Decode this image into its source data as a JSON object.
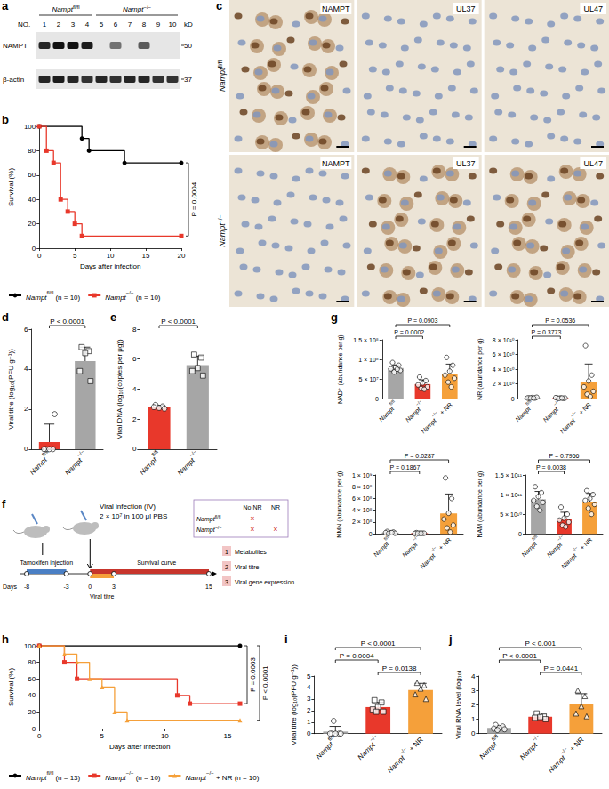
{
  "blot": {
    "panel": "a",
    "header": "NO.",
    "unit": "kD",
    "groups": [
      {
        "label": {
          "base": "Nampt",
          "sup": "fl/fl"
        },
        "lanes": [
          1,
          2,
          3,
          4
        ]
      },
      {
        "label": {
          "base": "Nampt",
          "sup": "−/−"
        },
        "lanes": [
          5,
          6,
          7,
          8,
          9,
          10
        ]
      }
    ],
    "rows": [
      {
        "name": "NAMPT",
        "marker": 50,
        "intensity": [
          0.9,
          1,
          1,
          0.95,
          0,
          0.55,
          0,
          0.65,
          0,
          0
        ]
      },
      {
        "name": "β-actin",
        "marker": 37,
        "intensity": [
          0.9,
          0.95,
          0.9,
          0.85,
          0.9,
          0.85,
          0.9,
          0.9,
          0.85,
          0.85
        ]
      }
    ]
  },
  "images": {
    "panel": "c",
    "rows": [
      {
        "label": {
          "base": "Nampt",
          "sup": "fl/fl"
        },
        "stains": [
          "NAMPT",
          "UL37",
          "UL47"
        ],
        "stained": [
          true,
          false,
          false
        ]
      },
      {
        "label": {
          "base": "Nampt",
          "sup": "−/−"
        },
        "stains": [
          "NAMPT",
          "UL37",
          "UL47"
        ],
        "stained": [
          false,
          true,
          true
        ]
      }
    ]
  },
  "schematic": {
    "panel": "f",
    "infection_label": "Viral infection (IV)",
    "infection_dose": "2 × 10⁷ in 100 μl PBS",
    "tamoxifen_label": "Tamoxifen injection",
    "survival_label": "Survival curve",
    "titre_label": "Viral titre",
    "days_label": "Days",
    "day_ticks": [
      -8,
      -3,
      0,
      3,
      15
    ],
    "tamoxifen_days": [
      -8,
      -3
    ],
    "survival_days": [
      0,
      15
    ],
    "titre_days": [
      0,
      3
    ],
    "design_table": {
      "columns": [
        "No NR",
        "NR"
      ],
      "mark": "×",
      "rows": [
        {
          "label": {
            "base": "Nampt",
            "sup": "fl/fl"
          },
          "marks": [
            true,
            false
          ]
        },
        {
          "label": {
            "base": "Nampt",
            "sup": "−/−"
          },
          "marks": [
            true,
            true
          ]
        }
      ]
    },
    "readouts": [
      {
        "number": 1,
        "text": "Metabolites"
      },
      {
        "number": 2,
        "text": "Viral titre"
      },
      {
        "number": 3,
        "text": "Viral gene expression"
      }
    ]
  },
  "chart_data": [
    {
      "panel": "b",
      "type": "survival",
      "xlabel": "Days after infection",
      "ylabel": "Survival (%)",
      "xlim": [
        0,
        20
      ],
      "xticks": [
        0,
        5,
        10,
        15,
        20
      ],
      "ylim": [
        0,
        100
      ],
      "yticks": [
        0,
        20,
        40,
        60,
        80,
        100
      ],
      "legend": "bottom",
      "series": [
        {
          "name": {
            "base": "Nampt",
            "sup": "fl/fl",
            "tail": " (n = 10)"
          },
          "color": "#000000",
          "marker": "circle",
          "x": [
            0,
            6,
            7,
            12,
            20
          ],
          "values": [
            100,
            90,
            80,
            70,
            70
          ]
        },
        {
          "name": {
            "base": "Nampt",
            "sup": "−/−",
            "tail": " (n = 10)"
          },
          "color": "#e8382b",
          "marker": "rect",
          "x": [
            0,
            1,
            2,
            3,
            4,
            5,
            6,
            20
          ],
          "values": [
            100,
            80,
            70,
            40,
            30,
            20,
            10,
            10
          ]
        }
      ],
      "comparisons": [
        {
          "groups": [
            0,
            1
          ],
          "label": "P = 0.0004"
        }
      ]
    },
    {
      "panel": "d",
      "type": "bar",
      "ylabel": "Viral titre (log₁₀(PFU g⁻¹))",
      "categories": [
        {
          "base": "Nampt",
          "sup": "fl/fl"
        },
        {
          "base": "Nampt",
          "sup": "−/−"
        }
      ],
      "values": [
        0.35,
        4.4
      ],
      "error": [
        0.9,
        0.7
      ],
      "points": [
        [
          0,
          0,
          0,
          0,
          1.75
        ],
        [
          5.1,
          4.9,
          4.8,
          3.9,
          3.4
        ]
      ],
      "colors": [
        "#e8382b",
        "#a6a6a6"
      ],
      "markers": [
        "circle",
        "rect"
      ],
      "ylim": [
        0,
        6
      ],
      "yticks": [
        0,
        2,
        4,
        6
      ],
      "comparisons": [
        {
          "groups": [
            0,
            1
          ],
          "label": "P < 0.0001"
        }
      ]
    },
    {
      "panel": "e",
      "type": "bar",
      "ylabel": "Viral DNA (log₁₀(copies per μg))",
      "categories": [
        {
          "base": "Nampt",
          "sup": "fl/fl"
        },
        {
          "base": "Nampt",
          "sup": "−/−"
        }
      ],
      "values": [
        2.8,
        5.6
      ],
      "error": [
        0.12,
        0.6
      ],
      "points": [
        [
          2.95,
          2.85,
          2.75,
          2.8,
          2.7
        ],
        [
          6.3,
          6.1,
          5.4,
          5.2,
          4.9
        ]
      ],
      "colors": [
        "#e8382b",
        "#a6a6a6"
      ],
      "markers": [
        "circle",
        "rect"
      ],
      "ylim": [
        0,
        8
      ],
      "yticks": [
        0,
        2,
        4,
        6,
        8
      ],
      "comparisons": [
        {
          "groups": [
            0,
            1
          ],
          "label": "P < 0.0001"
        }
      ]
    },
    {
      "panel": "g",
      "type": "bar",
      "ylabel": "NAD⁺ (abundance per g)",
      "categories": [
        {
          "base": "Nampt",
          "sup": "fl/fl"
        },
        {
          "base": "Nampt",
          "sup": "−/−"
        },
        {
          "base": "Nampt",
          "sup": "−/−",
          "tail": " + NR"
        }
      ],
      "values": [
        78000000,
        37000000,
        63000000
      ],
      "error": [
        8000000,
        11000000,
        25000000
      ],
      "points": [
        [
          92000000,
          85000000,
          80000000,
          76000000,
          72000000,
          68000000,
          75000000
        ],
        [
          55000000,
          46000000,
          40000000,
          35000000,
          30000000,
          26000000,
          24000000
        ],
        [
          105000000,
          85000000,
          70000000,
          60000000,
          52000000,
          42000000,
          30000000
        ]
      ],
      "colors": [
        "#a6a6a6",
        "#e8382b",
        "#f5a03a"
      ],
      "markers": [
        "circle",
        "circle",
        "circle"
      ],
      "ylim": [
        0,
        150000000
      ],
      "yticks": [
        0,
        {
          "value": 50000000,
          "label": "5 × 10⁷"
        },
        {
          "value": 100000000,
          "label": "1 × 10⁸"
        },
        {
          "value": 150000000,
          "label": "1.5 × 10⁸"
        }
      ],
      "comparisons": [
        {
          "groups": [
            0,
            2
          ],
          "label": "P = 0.0903"
        },
        {
          "groups": [
            0,
            1
          ],
          "label": "P = 0.0002"
        }
      ]
    },
    {
      "type": "bar",
      "ylabel": "NR (abundance per g)",
      "categories": [
        {
          "base": "Nampt",
          "sup": "fl/fl"
        },
        {
          "base": "Nampt",
          "sup": "−/−"
        },
        {
          "base": "Nampt",
          "sup": "−/−",
          "tail": " + NR"
        }
      ],
      "values": [
        1200000000,
        900000000,
        23000000000
      ],
      "error": [
        400000000,
        350000000,
        24000000000
      ],
      "points": [
        [
          1000000000,
          1000000000,
          1500000000,
          1000000000,
          2000000000,
          1000000000,
          1000000000
        ],
        [
          1000000000,
          500000000,
          1000000000,
          1500000000,
          1000000000,
          500000000,
          1000000000
        ],
        [
          72000000000,
          32000000000,
          24000000000,
          16000000000,
          10000000000,
          6000000000,
          3000000000
        ]
      ],
      "colors": [
        "#a6a6a6",
        "#e8382b",
        "#f5a03a"
      ],
      "markers": [
        "circle",
        "circle",
        "circle"
      ],
      "ylim": [
        0,
        80000000000
      ],
      "yticks": [
        0,
        {
          "value": 20000000000,
          "label": "2 × 10¹⁰"
        },
        {
          "value": 40000000000,
          "label": "4 × 10¹⁰"
        },
        {
          "value": 60000000000,
          "label": "6 × 10¹⁰"
        },
        {
          "value": 80000000000,
          "label": "8 × 10¹⁰"
        }
      ],
      "comparisons": [
        {
          "groups": [
            0,
            2
          ],
          "label": "P = 0.0536"
        },
        {
          "groups": [
            0,
            1
          ],
          "label": "P = 0.3773"
        }
      ]
    },
    {
      "type": "bar",
      "ylabel": "NMN (abundance per g)",
      "categories": [
        {
          "base": "Nampt",
          "sup": "fl/fl"
        },
        {
          "base": "Nampt",
          "sup": "−/−"
        },
        {
          "base": "Nampt",
          "sup": "−/−",
          "tail": " + NR"
        }
      ],
      "values": [
        21000000,
        11000000,
        347000000
      ],
      "error": [
        11000000,
        5000000,
        330000000
      ],
      "points": [
        [
          40000000,
          30000000,
          20000000,
          20000000,
          10000000,
          10000000,
          20000000
        ],
        [
          20000000,
          10000000,
          10000000,
          5000000,
          10000000,
          10000000,
          10000000
        ],
        [
          950000000,
          600000000,
          350000000,
          250000000,
          150000000,
          100000000,
          30000000
        ]
      ],
      "colors": [
        "#a6a6a6",
        "#e8382b",
        "#f5a03a"
      ],
      "markers": [
        "circle",
        "circle",
        "circle"
      ],
      "ylim": [
        0,
        1000000000
      ],
      "yticks": [
        0,
        {
          "value": 200000000,
          "label": "2 × 10⁸"
        },
        {
          "value": 400000000,
          "label": "4 × 10⁸"
        },
        {
          "value": 600000000,
          "label": "6 × 10⁸"
        },
        {
          "value": 800000000,
          "label": "8 × 10⁸"
        },
        {
          "value": 1000000000,
          "label": "1 × 10⁹"
        }
      ],
      "comparisons": [
        {
          "groups": [
            0,
            2
          ],
          "label": "P = 0.0287"
        },
        {
          "groups": [
            0,
            1
          ],
          "label": "P = 0.1867"
        }
      ]
    },
    {
      "type": "bar",
      "ylabel": "NAM (abundance per g)",
      "categories": [
        {
          "base": "Nampt",
          "sup": "fl/fl"
        },
        {
          "base": "Nampt",
          "sup": "−/−"
        },
        {
          "base": "Nampt",
          "sup": "−/−",
          "tail": " + NR"
        }
      ],
      "values": [
        88000000000,
        38000000000,
        82000000000
      ],
      "error": [
        20000000000,
        17000000000,
        21000000000
      ],
      "points": [
        [
          120000000000,
          105000000000,
          95000000000,
          85000000000,
          80000000000,
          70000000000,
          60000000000
        ],
        [
          68000000000,
          50000000000,
          40000000000,
          35000000000,
          30000000000,
          22000000000,
          18000000000
        ],
        [
          110000000000,
          100000000000,
          90000000000,
          85000000000,
          75000000000,
          65000000000,
          50000000000
        ]
      ],
      "colors": [
        "#a6a6a6",
        "#e8382b",
        "#f5a03a"
      ],
      "markers": [
        "circle",
        "circle",
        "circle"
      ],
      "ylim": [
        0,
        150000000000
      ],
      "yticks": [
        0,
        {
          "value": 50000000000,
          "label": "5 × 10¹⁰"
        },
        {
          "value": 100000000000,
          "label": "1 × 10¹¹"
        },
        {
          "value": 150000000000,
          "label": "1.5 × 10¹¹"
        }
      ],
      "comparisons": [
        {
          "groups": [
            0,
            2
          ],
          "label": "P = 0.7956"
        },
        {
          "groups": [
            0,
            1
          ],
          "label": "P = 0.0038"
        }
      ]
    },
    {
      "panel": "h",
      "type": "survival",
      "xlabel": "Days after infection",
      "ylabel": "Survival (%)",
      "xlim": [
        0,
        16
      ],
      "xticks": [
        0,
        5,
        10,
        15
      ],
      "ylim": [
        0,
        100
      ],
      "yticks": [
        0,
        20,
        40,
        60,
        80,
        100
      ],
      "legend": "bottom",
      "series": [
        {
          "name": {
            "base": "Nampt",
            "sup": "fl/fl",
            "tail": " (n = 13)"
          },
          "color": "#000000",
          "marker": "circle",
          "x": [
            0,
            16
          ],
          "values": [
            100,
            100
          ]
        },
        {
          "name": {
            "base": "Nampt",
            "sup": "−/−",
            "tail": " (n = 10)"
          },
          "color": "#e8382b",
          "marker": "rect",
          "x": [
            0,
            2,
            3,
            11,
            12,
            16
          ],
          "values": [
            100,
            80,
            60,
            40,
            30,
            30
          ]
        },
        {
          "name": {
            "base": "Nampt",
            "sup": "−/−",
            "tail": " + NR (n = 10)"
          },
          "color": "#f5a03a",
          "marker": "triangle",
          "x": [
            0,
            2,
            3,
            4,
            5,
            6,
            7,
            16
          ],
          "values": [
            100,
            90,
            80,
            60,
            50,
            20,
            10,
            10
          ]
        }
      ],
      "comparisons": [
        {
          "groups": [
            0,
            1
          ],
          "label": "P = 0.0003"
        },
        {
          "groups": [
            0,
            2
          ],
          "label": "P < 0.0001"
        }
      ]
    },
    {
      "panel": "i",
      "type": "bar",
      "ylabel": "Viral titre (log₁₀(PFU g⁻¹))",
      "categories": [
        {
          "base": "Nampt",
          "sup": "fl/fl"
        },
        {
          "base": "Nampt",
          "sup": "−/−"
        },
        {
          "base": "Nampt",
          "sup": "−/−",
          "tail": " + NR"
        }
      ],
      "values": [
        0.18,
        2.3,
        3.78
      ],
      "error": [
        0.45,
        0.4,
        0.58
      ],
      "points": [
        [
          0,
          0,
          0,
          0,
          0,
          1.1
        ],
        [
          2.9,
          2.7,
          2.3,
          2.1,
          1.9,
          1.9
        ],
        [
          4.4,
          4.2,
          3.9,
          3.4,
          3.0
        ]
      ],
      "colors": [
        "#a6a6a6",
        "#e8382b",
        "#f5a03a"
      ],
      "markers": [
        "circle",
        "rect",
        "triangle"
      ],
      "ylim": [
        0,
        5
      ],
      "yticks": [
        0,
        1,
        2,
        3,
        4,
        5
      ],
      "comparisons": [
        {
          "groups": [
            0,
            2
          ],
          "label": "P < 0.0001"
        },
        {
          "groups": [
            0,
            1
          ],
          "label": "P = 0.0004"
        },
        {
          "groups": [
            1,
            2
          ],
          "label": "P = 0.0138"
        }
      ]
    },
    {
      "panel": "j",
      "type": "bar",
      "ylabel": "Viral RNA level (log₁₀)",
      "categories": [
        {
          "base": "Nampt",
          "sup": "fl/fl"
        },
        {
          "base": "Nampt",
          "sup": "−/−"
        },
        {
          "base": "Nampt",
          "sup": "−/−",
          "tail": " + NR"
        }
      ],
      "values": [
        0.4,
        1.17,
        2.02
      ],
      "error": [
        0.13,
        0.15,
        0.75
      ],
      "points": [
        [
          0.6,
          0.5,
          0.4,
          0.35,
          0.3,
          0.25
        ],
        [
          1.4,
          1.2,
          1.15,
          1.1,
          1.0
        ],
        [
          3.0,
          2.6,
          1.9,
          1.4,
          1.2
        ]
      ],
      "colors": [
        "#a6a6a6",
        "#e8382b",
        "#f5a03a"
      ],
      "markers": [
        "circle",
        "rect",
        "triangle"
      ],
      "ylim": [
        0,
        4
      ],
      "yticks": [
        0,
        1,
        2,
        3,
        4
      ],
      "comparisons": [
        {
          "groups": [
            0,
            2
          ],
          "label": "P < 0.001"
        },
        {
          "groups": [
            0,
            1
          ],
          "label": "P < 0.0001"
        },
        {
          "groups": [
            1,
            2
          ],
          "label": "P = 0.0441"
        }
      ]
    }
  ]
}
